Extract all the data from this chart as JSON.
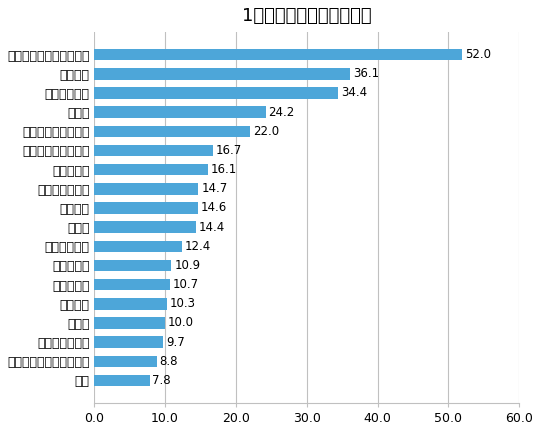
{
  "title": "1か月あたりの平均投稿数",
  "categories": [
    "食品・飲食（ブランド）",
    "メディア",
    "ファッション",
    "小売り",
    "エンターテイメント",
    "住宅・建設・不動産",
    "電機・通信",
    "ライフスタイル",
    "サービス",
    "官公庁",
    "美容・化粧品",
    "交通・輸送",
    "金融・保険",
    "インフラ",
    "日用品",
    "学校・教育機関",
    "食品・飲食（メディア）",
    "外食"
  ],
  "values": [
    52.0,
    36.1,
    34.4,
    24.2,
    22.0,
    16.7,
    16.1,
    14.7,
    14.6,
    14.4,
    12.4,
    10.9,
    10.7,
    10.3,
    10.0,
    9.7,
    8.8,
    7.8
  ],
  "bar_color": "#4da6d9",
  "xlim": [
    0,
    60
  ],
  "xticks": [
    0.0,
    10.0,
    20.0,
    30.0,
    40.0,
    50.0,
    60.0
  ],
  "xtick_labels": [
    "0.0",
    "10.0",
    "20.0",
    "30.0",
    "40.0",
    "50.0",
    "60.0"
  ],
  "background_color": "#ffffff",
  "grid_color": "#c0c0c0",
  "title_fontsize": 13,
  "label_fontsize": 9,
  "value_fontsize": 8.5
}
